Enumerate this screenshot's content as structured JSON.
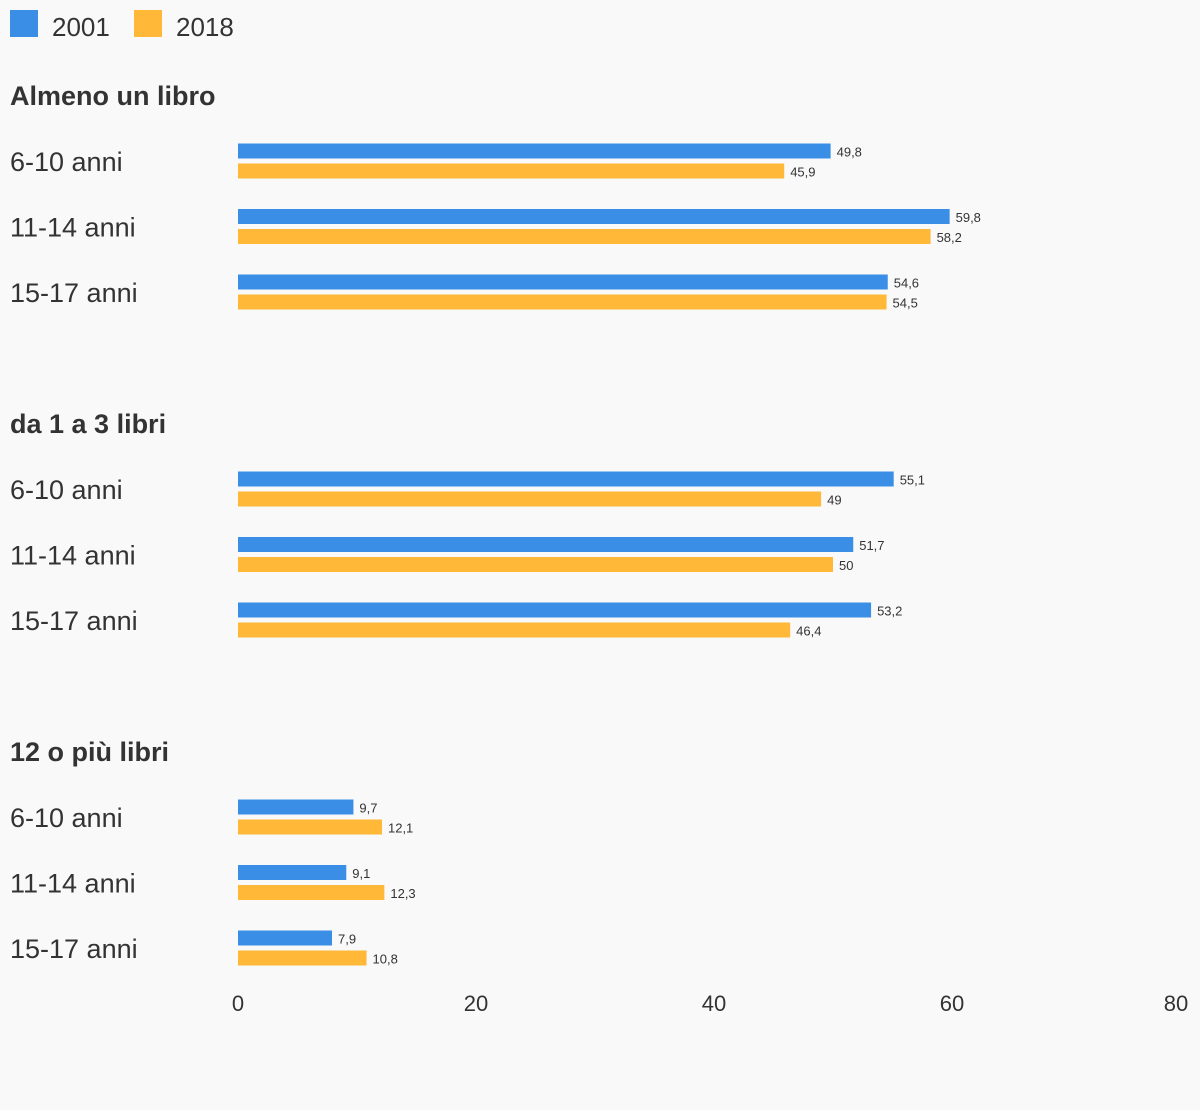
{
  "chart_data": {
    "type": "bar",
    "orientation": "horizontal",
    "xlim": [
      0,
      80
    ],
    "x_ticks": [
      "0",
      "20",
      "40",
      "60",
      "80"
    ],
    "grid": false,
    "legend_position": "top-left",
    "series": [
      {
        "name": "2001",
        "color": "#3a8ee6"
      },
      {
        "name": "2018",
        "color": "#ffb838"
      }
    ],
    "groups": [
      {
        "title": "Almeno un libro",
        "rows": [
          {
            "label": "6-10 anni",
            "values": [
              49.8,
              45.9
            ],
            "value_labels": [
              "49,8",
              "45,9"
            ]
          },
          {
            "label": "11-14 anni",
            "values": [
              59.8,
              58.2
            ],
            "value_labels": [
              "59,8",
              "58,2"
            ]
          },
          {
            "label": "15-17 anni",
            "values": [
              54.6,
              54.5
            ],
            "value_labels": [
              "54,6",
              "54,5"
            ]
          }
        ]
      },
      {
        "title": "da 1 a 3 libri",
        "rows": [
          {
            "label": "6-10 anni",
            "values": [
              55.1,
              49
            ],
            "value_labels": [
              "55,1",
              "49"
            ]
          },
          {
            "label": "11-14 anni",
            "values": [
              51.7,
              50
            ],
            "value_labels": [
              "51,7",
              "50"
            ]
          },
          {
            "label": "15-17 anni",
            "values": [
              53.2,
              46.4
            ],
            "value_labels": [
              "53,2",
              "46,4"
            ]
          }
        ]
      },
      {
        "title": "12 o più libri",
        "rows": [
          {
            "label": "6-10 anni",
            "values": [
              9.7,
              12.1
            ],
            "value_labels": [
              "9,7",
              "12,1"
            ]
          },
          {
            "label": "11-14 anni",
            "values": [
              9.1,
              12.3
            ],
            "value_labels": [
              "9,1",
              "12,3"
            ]
          },
          {
            "label": "15-17 anni",
            "values": [
              7.9,
              10.8
            ],
            "value_labels": [
              "7,9",
              "10,8"
            ]
          }
        ]
      }
    ]
  }
}
